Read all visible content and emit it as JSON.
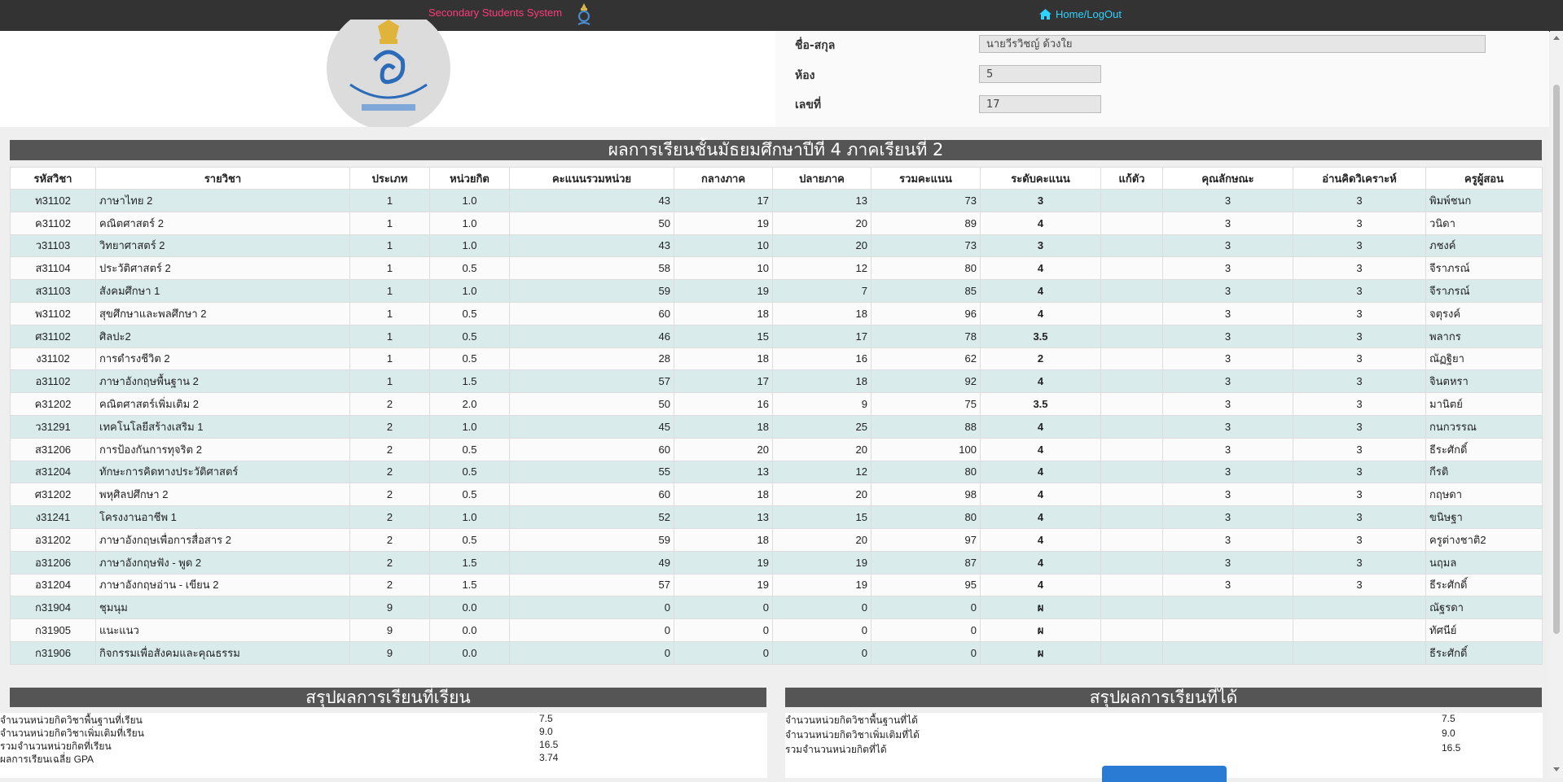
{
  "navbar": {
    "brand": "Secondary Students System",
    "home_logout": "Home/LogOut"
  },
  "student": {
    "name_label": "ชื่อ-สกุล",
    "name_value": "นายวีรวิชญ์  ด้วงใย",
    "room_label": "ห้อง",
    "room_value": "5",
    "number_label": "เลขที่",
    "number_value": "17"
  },
  "results": {
    "title": "ผลการเรียนชั้นมัธยมศึกษาปีที่ 4 ภาคเรียนที่ 2",
    "headers": [
      "รหัสวิชา",
      "รายวิชา",
      "ประเภท",
      "หน่วยกิต",
      "คะแนนรวมหน่วย",
      "กลางภาค",
      "ปลายภาค",
      "รวมคะแนน",
      "ระดับคะแนน",
      "แก้ตัว",
      "คุณลักษณะ",
      "อ่านคิดวิเคราะห์",
      "ครูผู้สอน"
    ],
    "rows": [
      [
        "ท31102",
        "ภาษาไทย 2",
        "1",
        "1.0",
        "43",
        "17",
        "13",
        "73",
        "3",
        "",
        "3",
        "3",
        "พิมพ์ชนก"
      ],
      [
        "ค31102",
        "คณิตศาสตร์ 2",
        "1",
        "1.0",
        "50",
        "19",
        "20",
        "89",
        "4",
        "",
        "3",
        "3",
        "วนิดา"
      ],
      [
        "ว31103",
        "วิทยาศาสตร์ 2",
        "1",
        "1.0",
        "43",
        "10",
        "20",
        "73",
        "3",
        "",
        "3",
        "3",
        "ภชงค์"
      ],
      [
        "ส31104",
        "ประวัติศาสตร์ 2",
        "1",
        "0.5",
        "58",
        "10",
        "12",
        "80",
        "4",
        "",
        "3",
        "3",
        "จีราภรณ์"
      ],
      [
        "ส31103",
        "สังคมศึกษา 1",
        "1",
        "1.0",
        "59",
        "19",
        "7",
        "85",
        "4",
        "",
        "3",
        "3",
        "จีราภรณ์"
      ],
      [
        "พ31102",
        "สุขศึกษาและพลศึกษา 2",
        "1",
        "0.5",
        "60",
        "18",
        "18",
        "96",
        "4",
        "",
        "3",
        "3",
        "จตุรงค์"
      ],
      [
        "ศ31102",
        "ศิลปะ2",
        "1",
        "0.5",
        "46",
        "15",
        "17",
        "78",
        "3.5",
        "",
        "3",
        "3",
        "พลากร"
      ],
      [
        "ง31102",
        "การดำรงชีวิต 2",
        "1",
        "0.5",
        "28",
        "18",
        "16",
        "62",
        "2",
        "",
        "3",
        "3",
        "ณัฏฐิยา"
      ],
      [
        "อ31102",
        "ภาษาอังกฤษพื้นฐาน 2",
        "1",
        "1.5",
        "57",
        "17",
        "18",
        "92",
        "4",
        "",
        "3",
        "3",
        "จินตหรา"
      ],
      [
        "ค31202",
        "คณิตศาสตร์เพิ่มเติม 2",
        "2",
        "2.0",
        "50",
        "16",
        "9",
        "75",
        "3.5",
        "",
        "3",
        "3",
        "มานิตย์"
      ],
      [
        "ว31291",
        "เทคโนโลยีสร้างเสริม 1",
        "2",
        "1.0",
        "45",
        "18",
        "25",
        "88",
        "4",
        "",
        "3",
        "3",
        "กนกวรรณ"
      ],
      [
        "ส31206",
        "การป้องกันการทุจริต 2",
        "2",
        "0.5",
        "60",
        "20",
        "20",
        "100",
        "4",
        "",
        "3",
        "3",
        "ธีระศักดิ์"
      ],
      [
        "ส31204",
        "ทักษะการคิดทางประวัติศาสตร์",
        "2",
        "0.5",
        "55",
        "13",
        "12",
        "80",
        "4",
        "",
        "3",
        "3",
        "กีรติ"
      ],
      [
        "ศ31202",
        "พหุศิลปศึกษา 2",
        "2",
        "0.5",
        "60",
        "18",
        "20",
        "98",
        "4",
        "",
        "3",
        "3",
        "กฤษดา"
      ],
      [
        "ง31241",
        "โครงงานอาชีพ 1",
        "2",
        "1.0",
        "52",
        "13",
        "15",
        "80",
        "4",
        "",
        "3",
        "3",
        "ขนิษฐา"
      ],
      [
        "อ31202",
        "ภาษาอังกฤษเพื่อการสื่อสาร 2",
        "2",
        "0.5",
        "59",
        "18",
        "20",
        "97",
        "4",
        "",
        "3",
        "3",
        "ครูต่างชาติ2"
      ],
      [
        "อ31206",
        "ภาษาอังกฤษฟัง - พูด 2",
        "2",
        "1.5",
        "49",
        "19",
        "19",
        "87",
        "4",
        "",
        "3",
        "3",
        "นฤมล"
      ],
      [
        "อ31204",
        "ภาษาอังกฤษอ่าน - เขียน 2",
        "2",
        "1.5",
        "57",
        "19",
        "19",
        "95",
        "4",
        "",
        "3",
        "3",
        "ธีระศักดิ์"
      ],
      [
        "ก31904",
        "ชุมนุม",
        "9",
        "0.0",
        "0",
        "0",
        "0",
        "0",
        "ผ",
        "",
        "",
        "",
        "ณัฐรดา"
      ],
      [
        "ก31905",
        "แนะแนว",
        "9",
        "0.0",
        "0",
        "0",
        "0",
        "0",
        "ผ",
        "",
        "",
        "",
        "ทัศนีย์"
      ],
      [
        "ก31906",
        "กิจกรรมเพื่อสังคมและคุณธรรม",
        "9",
        "0.0",
        "0",
        "0",
        "0",
        "0",
        "ผ",
        "",
        "",
        "",
        "ธีระศักดิ์"
      ]
    ]
  },
  "summary_studied": {
    "title": "สรุปผลการเรียนที่เรียน",
    "rows": [
      {
        "label": "จำนวนหน่วยกิตวิชาพื้นฐานที่เรียน",
        "value": "7.5"
      },
      {
        "label": "จำนวนหน่วยกิตวิชาเพิ่มเติมที่เรียน",
        "value": "9.0"
      },
      {
        "label": "รวมจำนวนหน่วยกิตที่เรียน",
        "value": "16.5"
      },
      {
        "label": "ผลการเรียนเฉลี่ย GPA",
        "value": "3.74"
      }
    ]
  },
  "summary_earned": {
    "title": "สรุปผลการเรียนที่ได้",
    "rows": [
      {
        "label": "จำนวนหน่วยกิตวิชาพื้นฐานที่ได้",
        "value": "7.5"
      },
      {
        "label": "จำนวนหน่วยกิตวิชาเพิ่มเติมที่ได้",
        "value": "9.0"
      },
      {
        "label": "รวมจำนวนหน่วยกิตที่ได้",
        "value": "16.5"
      }
    ]
  },
  "icons": {
    "home": "home-icon",
    "brand_logo": "school-emblem-icon"
  },
  "colors": {
    "navbar": "#333333",
    "brand_text": "#ff3b7a",
    "home_link": "#2fd3ff",
    "row_alt": "#d9ebeb",
    "section_title": "#555555"
  }
}
